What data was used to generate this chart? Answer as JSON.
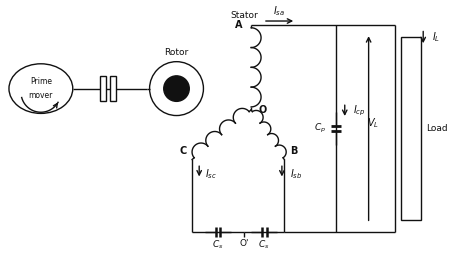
{
  "bg_color": "#ffffff",
  "line_color": "#111111",
  "fig_width": 4.74,
  "fig_height": 2.67,
  "dpi": 100,
  "xlim": [
    0,
    10
  ],
  "ylim": [
    0,
    5.6
  ]
}
